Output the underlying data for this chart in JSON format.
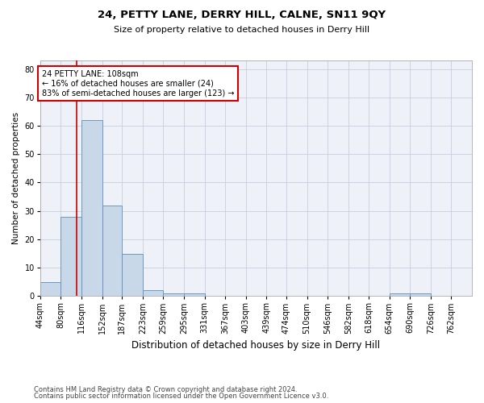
{
  "title": "24, PETTY LANE, DERRY HILL, CALNE, SN11 9QY",
  "subtitle": "Size of property relative to detached houses in Derry Hill",
  "xlabel": "Distribution of detached houses by size in Derry Hill",
  "ylabel": "Number of detached properties",
  "footnote1": "Contains HM Land Registry data © Crown copyright and database right 2024.",
  "footnote2": "Contains public sector information licensed under the Open Government Licence v3.0.",
  "bin_labels": [
    "44sqm",
    "80sqm",
    "116sqm",
    "152sqm",
    "187sqm",
    "223sqm",
    "259sqm",
    "295sqm",
    "331sqm",
    "367sqm",
    "403sqm",
    "439sqm",
    "474sqm",
    "510sqm",
    "546sqm",
    "582sqm",
    "618sqm",
    "654sqm",
    "690sqm",
    "726sqm",
    "762sqm"
  ],
  "bin_edges": [
    44,
    80,
    116,
    152,
    187,
    223,
    259,
    295,
    331,
    367,
    403,
    439,
    474,
    510,
    546,
    582,
    618,
    654,
    690,
    726,
    762
  ],
  "bar_values": [
    5,
    28,
    62,
    32,
    15,
    2,
    1,
    1,
    0,
    0,
    0,
    0,
    0,
    0,
    0,
    0,
    0,
    1,
    1,
    0,
    0
  ],
  "bar_color": "#c8d8e8",
  "bar_edge_color": "#5a8fc0",
  "property_size": 108,
  "vline_color": "#cc0000",
  "annotation_line1": "24 PETTY LANE: 108sqm",
  "annotation_line2": "← 16% of detached houses are smaller (24)",
  "annotation_line3": "83% of semi-detached houses are larger (123) →",
  "annotation_box_color": "#ffffff",
  "annotation_box_edge": "#cc0000",
  "ylim_max": 83,
  "yticks": [
    0,
    10,
    20,
    30,
    40,
    50,
    60,
    70,
    80
  ],
  "background_color": "#eef2f8",
  "grid_color": "#c5cfe0",
  "title_fontsize": 9.5,
  "subtitle_fontsize": 8,
  "xlabel_fontsize": 8.5,
  "ylabel_fontsize": 7.5,
  "tick_fontsize": 7,
  "annotation_fontsize": 7,
  "footnote_fontsize": 6
}
